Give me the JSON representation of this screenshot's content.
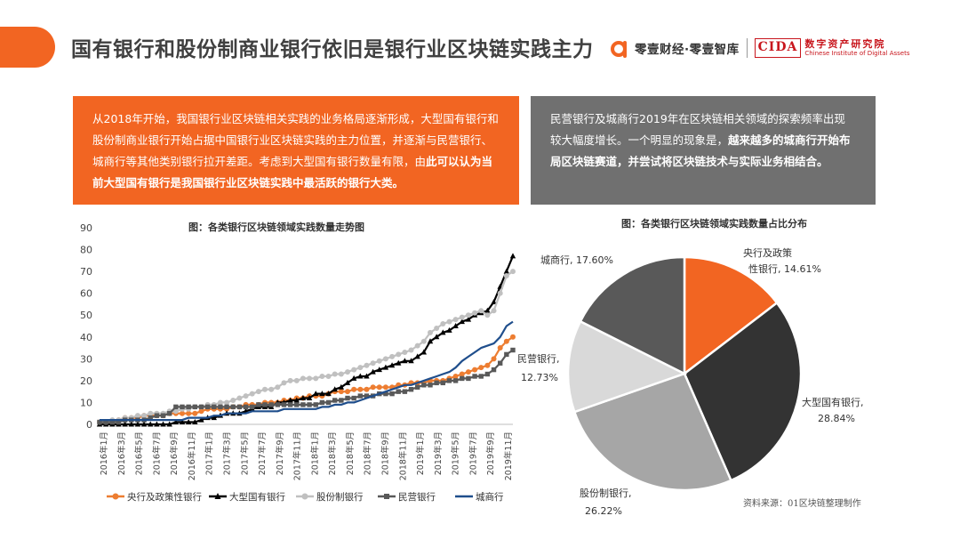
{
  "header": {
    "title": "国有银行和股份制商业银行依旧是银行业区块链实践主力",
    "brand_name": "零壹财经·零壹智库",
    "cida_abbr": "CIDA",
    "cida_cn": "数字资产研究院",
    "cida_en": "Chinese Institute of Digital Assets",
    "accent_color": "#f26522"
  },
  "left_box": {
    "text_normal": "从2018年开始，我国银行业区块链相关实践的业务格局逐渐形成，大型国有银行和股份制商业银行开始占据中国银行业区块链实践的主力位置，并逐渐与民营银行、城商行等其他类别银行拉开差距。考虑到大型国有银行数量有限，由",
    "text_bold": "此可以认为当前大型国有银行是我国银行业区块链实践中最活跃的银行大类。"
  },
  "right_box": {
    "text_normal": "民营银行及城商行2019年在区块链相关领域的探索频率出现较大幅度增长。一个明显的现象是，",
    "text_bold": "越来越多的城商行开始布局区块链赛道，并尝试将区块链技术与实际业务相结合。"
  },
  "line_chart_title": "图：各类银行区块链领域实践数量走势图",
  "pie_chart_title": "图：各类银行区块链领域实践数量占比分布",
  "source": "资料来源：01区块链整理制作",
  "chart_data": [
    {
      "type": "line",
      "title": "图：各类银行区块链领域实践数量走势图",
      "ylim": [
        0,
        90
      ],
      "yticks": [
        0,
        10,
        20,
        30,
        40,
        50,
        60,
        70,
        80,
        90
      ],
      "x_tick_labels": [
        "2016年1月",
        "2016年3月",
        "2016年5月",
        "2016年7月",
        "2016年9月",
        "2016年11月",
        "2017年1月",
        "2017年3月",
        "2017年5月",
        "2017年7月",
        "2017年9月",
        "2017年11月",
        "2018年1月",
        "2018年3月",
        "2018年5月",
        "2018年7月",
        "2018年9月",
        "2018年11月",
        "2019年1月",
        "2019年3月",
        "2019年5月",
        "2019年7月",
        "2019年9月",
        "2019年11月"
      ],
      "legend_position": "bottom",
      "series": [
        {
          "name": "央行及政策性银行",
          "color": "#ed7d31",
          "marker": "circle",
          "values": [
            1,
            1,
            1,
            2,
            3,
            3,
            3,
            4,
            4,
            4,
            4,
            5,
            5,
            5,
            5,
            5,
            6,
            7,
            7,
            7,
            7,
            8,
            8,
            9,
            9,
            9,
            10,
            10,
            10,
            11,
            11,
            12,
            12,
            13,
            13,
            13,
            14,
            15,
            15,
            15,
            16,
            16,
            16,
            17,
            17,
            17,
            17,
            18,
            18,
            19,
            19,
            19,
            20,
            20,
            20,
            21,
            22,
            23,
            24,
            25,
            26,
            27,
            30,
            35,
            38,
            40
          ]
        },
        {
          "name": "大型国有银行",
          "color": "#000000",
          "marker": "triangle",
          "values": [
            0,
            0,
            0,
            0,
            0,
            0,
            0,
            0,
            0,
            0,
            0,
            0,
            1,
            1,
            1,
            1,
            2,
            3,
            3,
            4,
            5,
            5,
            5,
            6,
            7,
            8,
            8,
            8,
            10,
            10,
            11,
            11,
            12,
            12,
            14,
            14,
            14,
            16,
            17,
            19,
            21,
            22,
            22,
            24,
            25,
            26,
            27,
            28,
            29,
            29,
            31,
            33,
            38,
            40,
            42,
            43,
            45,
            47,
            48,
            50,
            51,
            52,
            56,
            63,
            70,
            77
          ]
        },
        {
          "name": "股份制银行",
          "color": "#c0c0c0",
          "marker": "circle",
          "values": [
            1,
            1,
            2,
            2,
            3,
            3,
            4,
            4,
            5,
            5,
            5,
            6,
            6,
            7,
            7,
            8,
            8,
            9,
            9,
            10,
            10,
            11,
            12,
            13,
            14,
            15,
            16,
            16,
            17,
            19,
            20,
            20,
            21,
            21,
            21,
            22,
            22,
            23,
            23,
            24,
            25,
            26,
            27,
            28,
            29,
            30,
            31,
            32,
            33,
            34,
            36,
            38,
            42,
            44,
            46,
            47,
            48,
            49,
            50,
            51,
            52,
            50,
            52,
            60,
            68,
            70
          ]
        },
        {
          "name": "民营银行",
          "color": "#595959",
          "marker": "square",
          "values": [
            1,
            1,
            1,
            1,
            2,
            2,
            2,
            2,
            3,
            4,
            4,
            5,
            8,
            8,
            8,
            8,
            8,
            8,
            8,
            8,
            8,
            8,
            8,
            8,
            8,
            9,
            9,
            9,
            9,
            9,
            9,
            9,
            9,
            9,
            9,
            10,
            10,
            11,
            11,
            12,
            12,
            13,
            13,
            13,
            14,
            14,
            14,
            15,
            15,
            16,
            17,
            18,
            18,
            19,
            19,
            20,
            20,
            21,
            21,
            22,
            22,
            23,
            25,
            28,
            32,
            34
          ]
        },
        {
          "name": "城商行",
          "color": "#1f4e8c",
          "marker": "none",
          "values": [
            2,
            2,
            2,
            2,
            2,
            2,
            2,
            2,
            2,
            2,
            2,
            2,
            2,
            2,
            3,
            3,
            3,
            3,
            4,
            4,
            5,
            5,
            5,
            5,
            6,
            6,
            6,
            6,
            6,
            7,
            7,
            7,
            7,
            7,
            7,
            8,
            8,
            9,
            9,
            10,
            10,
            11,
            12,
            13,
            14,
            15,
            16,
            17,
            18,
            18,
            19,
            20,
            21,
            22,
            23,
            24,
            26,
            29,
            31,
            33,
            35,
            36,
            37,
            40,
            45,
            47
          ]
        }
      ]
    },
    {
      "type": "pie",
      "title": "图：各类银行区块链领域实践数量占比分布",
      "slices": [
        {
          "label": "央行及政策性银行",
          "value": 14.61,
          "display": "14.61%",
          "color": "#f26522"
        },
        {
          "label": "大型国有银行",
          "value": 28.84,
          "display": "28.84%",
          "color": "#333333"
        },
        {
          "label": "股份制银行",
          "value": 26.22,
          "display": "26.22%",
          "color": "#a6a6a6"
        },
        {
          "label": "民营银行",
          "value": 12.73,
          "display": "12.73%",
          "color": "#d9d9d9"
        },
        {
          "label": "城商行",
          "value": 17.6,
          "display": "17.60%",
          "color": "#595959"
        }
      ]
    }
  ]
}
